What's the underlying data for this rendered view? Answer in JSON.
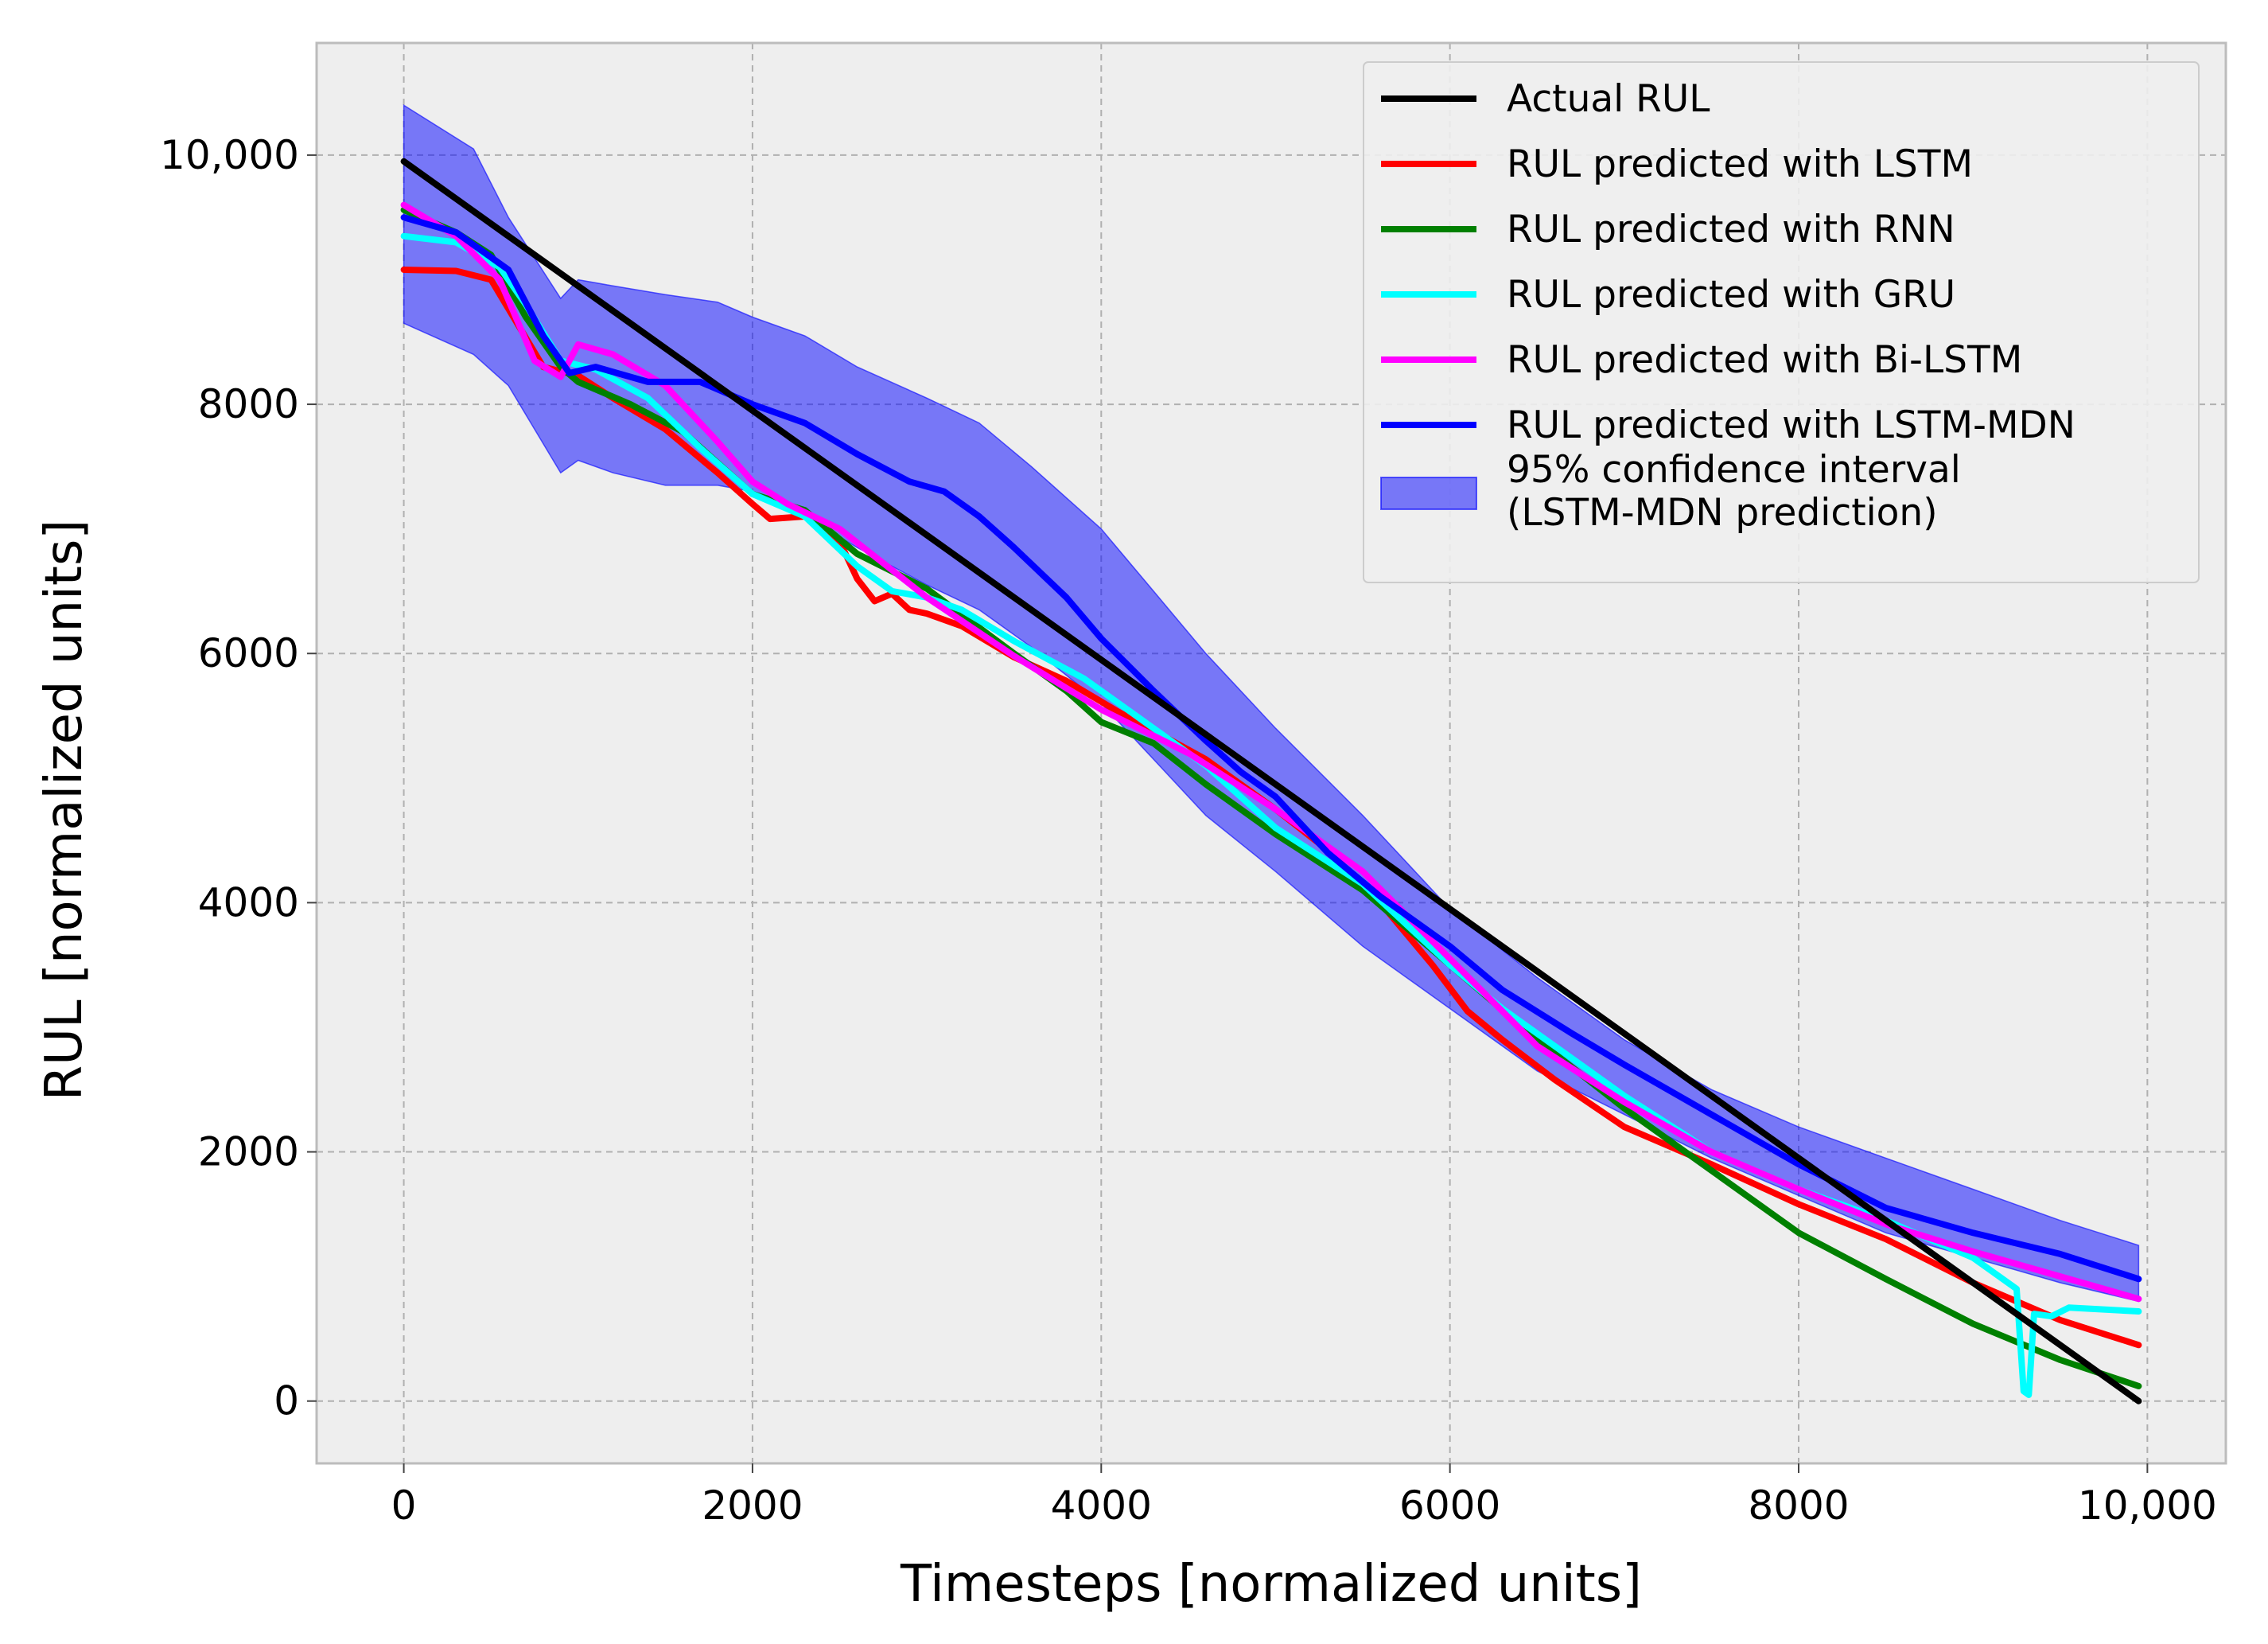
{
  "chart_data": {
    "type": "line",
    "title": "",
    "xlabel": "Timesteps [normalized units]",
    "ylabel": "RUL [normalized units]",
    "xlim": [
      -500,
      10450
    ],
    "ylim": [
      -500,
      10900
    ],
    "grid": true,
    "legend_position": "top-right",
    "xticks": [
      {
        "value": 0,
        "label": "0"
      },
      {
        "value": 2000,
        "label": "2000"
      },
      {
        "value": 4000,
        "label": "4000"
      },
      {
        "value": 6000,
        "label": "6000"
      },
      {
        "value": 8000,
        "label": "8000"
      },
      {
        "value": 10000,
        "label": "10,000"
      }
    ],
    "yticks": [
      {
        "value": 0,
        "label": "0"
      },
      {
        "value": 2000,
        "label": "2000"
      },
      {
        "value": 4000,
        "label": "4000"
      },
      {
        "value": 6000,
        "label": "6000"
      },
      {
        "value": 8000,
        "label": "8000"
      },
      {
        "value": 10000,
        "label": "10,000"
      }
    ],
    "series": [
      {
        "name": "Actual RUL",
        "color": "#000000",
        "points": [
          [
            0,
            9950
          ],
          [
            9950,
            0
          ]
        ]
      },
      {
        "name": "RUL predicted with LSTM",
        "color": "#ff0000",
        "points": [
          [
            0,
            9080
          ],
          [
            300,
            9070
          ],
          [
            500,
            9000
          ],
          [
            650,
            8650
          ],
          [
            800,
            8300
          ],
          [
            1000,
            8230
          ],
          [
            1200,
            8050
          ],
          [
            1500,
            7800
          ],
          [
            1800,
            7450
          ],
          [
            2000,
            7200
          ],
          [
            2100,
            7080
          ],
          [
            2300,
            7100
          ],
          [
            2500,
            6900
          ],
          [
            2600,
            6600
          ],
          [
            2700,
            6420
          ],
          [
            2800,
            6480
          ],
          [
            2900,
            6350
          ],
          [
            3000,
            6320
          ],
          [
            3200,
            6220
          ],
          [
            3500,
            5970
          ],
          [
            3800,
            5780
          ],
          [
            4100,
            5530
          ],
          [
            4300,
            5380
          ],
          [
            4600,
            5150
          ],
          [
            5000,
            4750
          ],
          [
            5300,
            4420
          ],
          [
            5600,
            4000
          ],
          [
            5900,
            3500
          ],
          [
            6100,
            3130
          ],
          [
            6300,
            2900
          ],
          [
            6600,
            2580
          ],
          [
            7000,
            2200
          ],
          [
            7500,
            1900
          ],
          [
            8000,
            1580
          ],
          [
            8500,
            1300
          ],
          [
            9000,
            950
          ],
          [
            9500,
            650
          ],
          [
            9950,
            450
          ]
        ]
      },
      {
        "name": "RUL predicted with RNN",
        "color": "#008000",
        "points": [
          [
            0,
            9560
          ],
          [
            300,
            9380
          ],
          [
            500,
            9200
          ],
          [
            700,
            8700
          ],
          [
            900,
            8300
          ],
          [
            1000,
            8180
          ],
          [
            1300,
            8000
          ],
          [
            1600,
            7780
          ],
          [
            2000,
            7280
          ],
          [
            2300,
            7150
          ],
          [
            2600,
            6800
          ],
          [
            3000,
            6520
          ],
          [
            3500,
            6000
          ],
          [
            3800,
            5700
          ],
          [
            4000,
            5450
          ],
          [
            4300,
            5280
          ],
          [
            4600,
            4950
          ],
          [
            5000,
            4550
          ],
          [
            5500,
            4100
          ],
          [
            6000,
            3500
          ],
          [
            6500,
            2900
          ],
          [
            7000,
            2350
          ],
          [
            7500,
            1850
          ],
          [
            8000,
            1350
          ],
          [
            8500,
            980
          ],
          [
            9000,
            620
          ],
          [
            9500,
            330
          ],
          [
            9950,
            120
          ]
        ]
      },
      {
        "name": "RUL predicted with GRU",
        "color": "#00ffff",
        "points": [
          [
            0,
            9350
          ],
          [
            300,
            9300
          ],
          [
            550,
            9100
          ],
          [
            700,
            8800
          ],
          [
            900,
            8350
          ],
          [
            1100,
            8280
          ],
          [
            1400,
            8050
          ],
          [
            1700,
            7650
          ],
          [
            2000,
            7280
          ],
          [
            2300,
            7100
          ],
          [
            2600,
            6700
          ],
          [
            2800,
            6500
          ],
          [
            3000,
            6450
          ],
          [
            3200,
            6350
          ],
          [
            3500,
            6100
          ],
          [
            3900,
            5800
          ],
          [
            4300,
            5400
          ],
          [
            4600,
            5100
          ],
          [
            5000,
            4600
          ],
          [
            5500,
            4150
          ],
          [
            6000,
            3500
          ],
          [
            6300,
            3150
          ],
          [
            6600,
            2850
          ],
          [
            7000,
            2450
          ],
          [
            7500,
            2000
          ],
          [
            8000,
            1700
          ],
          [
            8500,
            1450
          ],
          [
            9000,
            1150
          ],
          [
            9250,
            900
          ],
          [
            9290,
            80
          ],
          [
            9320,
            50
          ],
          [
            9350,
            700
          ],
          [
            9450,
            680
          ],
          [
            9550,
            750
          ],
          [
            9950,
            720
          ]
        ]
      },
      {
        "name": "RUL predicted with Bi-LSTM",
        "color": "#ff00ff",
        "points": [
          [
            0,
            9600
          ],
          [
            300,
            9350
          ],
          [
            550,
            9000
          ],
          [
            750,
            8350
          ],
          [
            900,
            8220
          ],
          [
            1000,
            8480
          ],
          [
            1200,
            8400
          ],
          [
            1500,
            8150
          ],
          [
            1800,
            7700
          ],
          [
            2000,
            7380
          ],
          [
            2200,
            7200
          ],
          [
            2500,
            7000
          ],
          [
            3000,
            6450
          ],
          [
            3500,
            5980
          ],
          [
            4000,
            5550
          ],
          [
            4500,
            5200
          ],
          [
            5000,
            4750
          ],
          [
            5500,
            4250
          ],
          [
            6000,
            3550
          ],
          [
            6500,
            2850
          ],
          [
            7000,
            2400
          ],
          [
            7500,
            2000
          ],
          [
            8000,
            1700
          ],
          [
            8500,
            1420
          ],
          [
            9000,
            1200
          ],
          [
            9500,
            1000
          ],
          [
            9950,
            820
          ]
        ]
      },
      {
        "name": "RUL predicted with LSTM-MDN",
        "color": "#0000ff",
        "points": [
          [
            0,
            9500
          ],
          [
            300,
            9380
          ],
          [
            600,
            9080
          ],
          [
            800,
            8550
          ],
          [
            950,
            8250
          ],
          [
            1100,
            8300
          ],
          [
            1400,
            8180
          ],
          [
            1700,
            8180
          ],
          [
            2000,
            8000
          ],
          [
            2300,
            7850
          ],
          [
            2600,
            7600
          ],
          [
            2900,
            7380
          ],
          [
            3100,
            7300
          ],
          [
            3300,
            7100
          ],
          [
            3500,
            6850
          ],
          [
            3800,
            6450
          ],
          [
            4000,
            6120
          ],
          [
            4300,
            5700
          ],
          [
            4600,
            5300
          ],
          [
            4800,
            5050
          ],
          [
            5000,
            4850
          ],
          [
            5300,
            4400
          ],
          [
            5600,
            4050
          ],
          [
            6000,
            3650
          ],
          [
            6300,
            3300
          ],
          [
            6700,
            2950
          ],
          [
            7000,
            2700
          ],
          [
            7500,
            2300
          ],
          [
            8000,
            1900
          ],
          [
            8500,
            1550
          ],
          [
            9000,
            1350
          ],
          [
            9500,
            1180
          ],
          [
            9950,
            980
          ]
        ]
      }
    ],
    "confidence_band": {
      "name": "95% confidence interval\n(LSTM-MDN prediction)",
      "legend_lines": [
        "95% confidence interval",
        "(LSTM-MDN prediction)"
      ],
      "color": "#0000ff",
      "opacity": 0.5,
      "x": [
        0,
        400,
        600,
        900,
        1000,
        1200,
        1500,
        1800,
        2000,
        2300,
        2600,
        3000,
        3300,
        3600,
        4000,
        4300,
        4600,
        5000,
        5500,
        6000,
        6500,
        7000,
        7500,
        8000,
        8500,
        9000,
        9500,
        9950
      ],
      "upper": [
        10400,
        10050,
        9500,
        8850,
        9000,
        8950,
        8880,
        8820,
        8700,
        8550,
        8300,
        8050,
        7850,
        7500,
        7000,
        6500,
        6000,
        5400,
        4700,
        3950,
        3400,
        2900,
        2500,
        2200,
        1950,
        1700,
        1450,
        1250
      ],
      "lower": [
        8650,
        8400,
        8150,
        7450,
        7550,
        7450,
        7350,
        7350,
        7300,
        7100,
        6850,
        6550,
        6350,
        6050,
        5600,
        5150,
        4700,
        4250,
        3650,
        3150,
        2650,
        2300,
        1950,
        1650,
        1350,
        1150,
        950,
        800
      ]
    }
  }
}
